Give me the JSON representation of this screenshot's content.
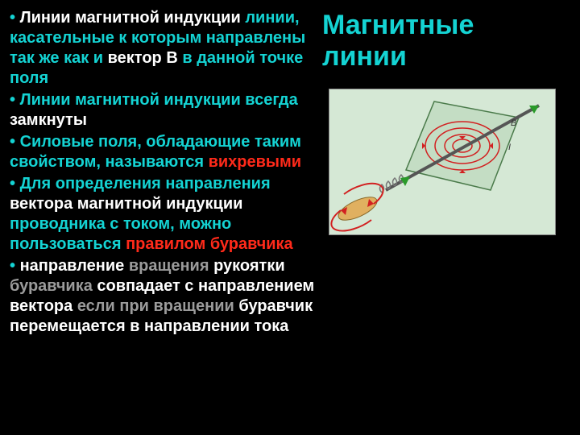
{
  "title": {
    "line1": "Магнитные",
    "line2": "линии",
    "color": "#14d3d3",
    "fontsize": 34
  },
  "bullets": [
    {
      "segments": [
        {
          "text": "• ",
          "color": "#14d3d3"
        },
        {
          "text": "Линии магнитной индукции",
          "color": "#ffffff"
        },
        {
          "text": " линии, касательные к которым направлены так же как и ",
          "color": "#14d3d3"
        },
        {
          "text": "вектор В",
          "color": "#ffffff"
        },
        {
          "text": " в данной точке поля",
          "color": "#14d3d3"
        }
      ]
    },
    {
      "segments": [
        {
          "text": "• ",
          "color": "#14d3d3"
        },
        {
          "text": "Линии магнитной индукции всегда ",
          "color": "#14d3d3"
        },
        {
          "text": "замкнуты",
          "color": "#ffffff"
        }
      ]
    },
    {
      "segments": [
        {
          "text": "• ",
          "color": "#14d3d3"
        },
        {
          "text": "Силовые поля, обладающие таким свойством, называются ",
          "color": "#14d3d3"
        },
        {
          "text": "вихревыми",
          "color": "#ff2a1a"
        }
      ]
    },
    {
      "segments": [
        {
          "text": "• ",
          "color": "#14d3d3"
        },
        {
          "text": "Для определения направления ",
          "color": "#14d3d3"
        },
        {
          "text": "вектора магнитной индукции",
          "color": "#ffffff"
        },
        {
          "text": " проводника с током, можно пользоваться ",
          "color": "#14d3d3"
        },
        {
          "text": "правилом буравчика",
          "color": "#ff2a1a"
        }
      ]
    },
    {
      "segments": [
        {
          "text": "• ",
          "color": "#14d3d3"
        },
        {
          "text": "направление",
          "color": "#ffffff"
        },
        {
          "text": " вращения ",
          "color": "#9b9b9b"
        },
        {
          "text": "рукоятки",
          "color": "#ffffff"
        },
        {
          "text": " буравчика ",
          "color": "#9b9b9b"
        },
        {
          "text": "совпадает с направлением вектора",
          "color": "#ffffff"
        },
        {
          "text": " если при вращении ",
          "color": "#9b9b9b"
        },
        {
          "text": "буравчик перемещается в направлении тока",
          "color": "#ffffff"
        }
      ]
    }
  ],
  "diagram": {
    "background": "#d5e8d5",
    "plane_fill": "#c4ddc4",
    "plane_stroke": "#4a7a4a",
    "ring_color": "#d22020",
    "arrow_color": "#2a9a2a",
    "wire_color": "#555555",
    "handle_color": "#b88a3a",
    "spring_color": "#777777",
    "label_B": "B",
    "label_I": "I"
  }
}
